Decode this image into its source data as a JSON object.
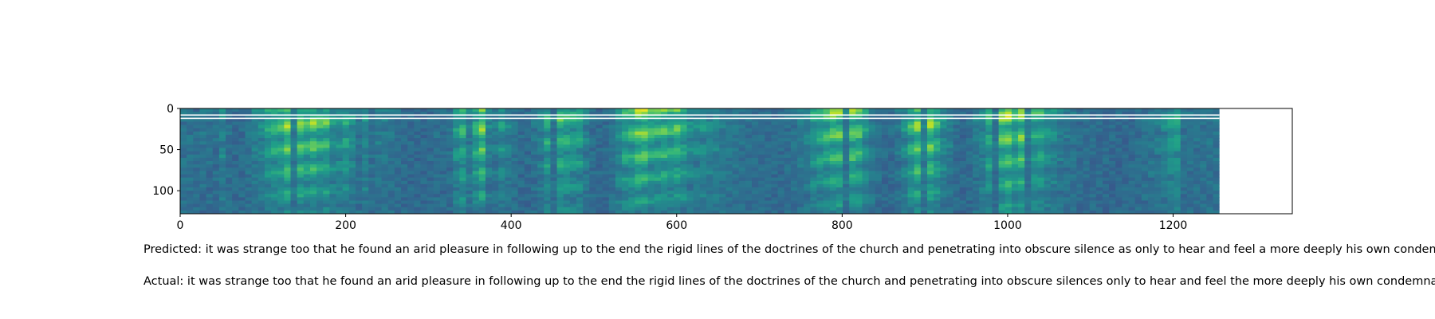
{
  "chart_data": {
    "type": "heatmap",
    "title": "",
    "xlabel": "",
    "ylabel": "",
    "xlim": [
      0,
      1344
    ],
    "ylim": [
      128,
      0
    ],
    "data_extent_x": [
      0,
      1256
    ],
    "x_ticks": [
      0,
      200,
      400,
      600,
      800,
      1000,
      1200
    ],
    "y_ticks": [
      0,
      50,
      100
    ],
    "colormap": "viridis",
    "grid": false,
    "legend": "none"
  },
  "captions": {
    "predicted_label": "Predicted: ",
    "predicted_text": "it was strange too that he found an arid pleasure in following up to the end the rigid lines of the doctrines of the church and penetrating into obscure silence as only to hear and feel a more deeply his own condemnation",
    "actual_label": "Actual: ",
    "actual_text": "it was strange too that he found an arid pleasure in following up to the end the rigid lines of the doctrines of the church and penetrating into obscure silences only to hear and feel the more deeply his own condemnation"
  }
}
